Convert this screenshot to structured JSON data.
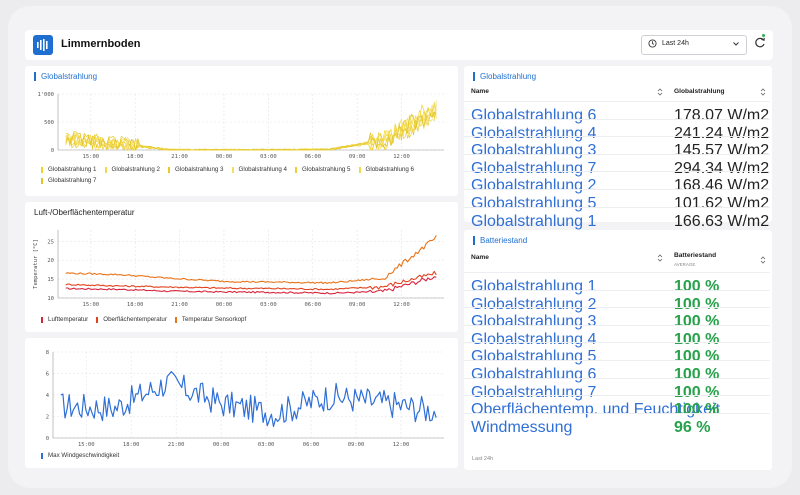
{
  "header": {
    "title": "Limmernboden",
    "range": "Last 24h"
  },
  "x_ticks": [
    "15:00",
    "18:00",
    "21:00",
    "00:00",
    "03:00",
    "06:00",
    "09:00",
    "12:00"
  ],
  "chart1": {
    "title": "Globalstrahlung",
    "yticks": [
      "1'000",
      "500",
      "0"
    ],
    "legend": [
      "Globalstrahlung 1",
      "Globalstrahlung 2",
      "Globalstrahlung 3",
      "Globalstrahlung 4",
      "Globalstrahlung 5",
      "Globalstrahlung 6",
      "Globalstrahlung 7"
    ],
    "colors": [
      "#f2d225",
      "#f0d84a",
      "#e8c92a",
      "#f5df5c",
      "#eccd34",
      "#f3d94e",
      "#e0c528"
    ]
  },
  "chart2": {
    "title": "Luft-/Oberflächentemperatur",
    "ylabel": "Temperatur [°C]",
    "yticks": [
      "25",
      "20",
      "15",
      "10"
    ],
    "legend": [
      "Lufttemperatur",
      "Oberflächentemperatur",
      "Temperatur Sensorkopf"
    ],
    "colors": [
      "#d6243b",
      "#e2431f",
      "#e8741a"
    ]
  },
  "chart3": {
    "yticks": [
      "8",
      "6",
      "4",
      "2",
      "0"
    ],
    "legend": [
      "Max Windgeschwindigkeit"
    ],
    "color": "#2f6fd6"
  },
  "table1": {
    "title": "Globalstrahlung",
    "col_name": "Name",
    "col_value": "Globalstrahlung",
    "rows": [
      {
        "name": "Globalstrahlung 6",
        "value": "178.07 W/m2"
      },
      {
        "name": "Globalstrahlung 4",
        "value": "241.24 W/m2"
      },
      {
        "name": "Globalstrahlung 3",
        "value": "145.57 W/m2"
      },
      {
        "name": "Globalstrahlung 7",
        "value": "294.34 W/m2"
      },
      {
        "name": "Globalstrahlung 2",
        "value": "168.46 W/m2"
      },
      {
        "name": "Globalstrahlung 5",
        "value": "101.62 W/m2"
      },
      {
        "name": "Globalstrahlung 1",
        "value": "166.63 W/m2"
      }
    ]
  },
  "table2": {
    "title": "Batteriestand",
    "col_name": "Name",
    "col_value": "Batteriestand",
    "col_sub": "AVERAGE",
    "footer": "Last 24h",
    "rows": [
      {
        "name": "Globalstrahlung 1",
        "value": "100 %"
      },
      {
        "name": "Globalstrahlung 2",
        "value": "100 %"
      },
      {
        "name": "Globalstrahlung 3",
        "value": "100 %"
      },
      {
        "name": "Globalstrahlung 4",
        "value": "100 %"
      },
      {
        "name": "Globalstrahlung 5",
        "value": "100 %"
      },
      {
        "name": "Globalstrahlung 6",
        "value": "100 %"
      },
      {
        "name": "Globalstrahlung 7",
        "value": "100 %"
      },
      {
        "name": "Oberflächentemp. und Feuchtigkeit",
        "value": "100 %"
      },
      {
        "name": "Windmessung",
        "value": "96 %"
      }
    ]
  },
  "chart_data": [
    {
      "type": "line",
      "title": "Globalstrahlung",
      "ylim": [
        0,
        1000
      ],
      "x": [
        "15:00",
        "18:00",
        "21:00",
        "00:00",
        "03:00",
        "06:00",
        "09:00",
        "12:00"
      ],
      "series": [
        {
          "name": "Globalstrahlung 1",
          "values": [
            190,
            110,
            0,
            0,
            0,
            10,
            170,
            820
          ]
        },
        {
          "name": "Globalstrahlung 2",
          "values": [
            210,
            120,
            0,
            0,
            0,
            12,
            180,
            700
          ]
        },
        {
          "name": "Globalstrahlung 3",
          "values": [
            170,
            100,
            0,
            0,
            0,
            8,
            160,
            640
          ]
        },
        {
          "name": "Globalstrahlung 4",
          "values": [
            230,
            130,
            0,
            0,
            0,
            14,
            190,
            760
          ]
        },
        {
          "name": "Globalstrahlung 5",
          "values": [
            160,
            90,
            0,
            0,
            0,
            9,
            150,
            600
          ]
        },
        {
          "name": "Globalstrahlung 6",
          "values": [
            200,
            115,
            0,
            0,
            0,
            11,
            175,
            720
          ]
        },
        {
          "name": "Globalstrahlung 7",
          "values": [
            240,
            125,
            0,
            0,
            0,
            13,
            185,
            680
          ]
        }
      ]
    },
    {
      "type": "line",
      "title": "Luft-/Oberflächentemperatur",
      "ylabel": "Temperatur [°C]",
      "ylim": [
        10,
        28
      ],
      "x": [
        "15:00",
        "18:00",
        "21:00",
        "00:00",
        "03:00",
        "06:00",
        "09:00",
        "12:00"
      ],
      "series": [
        {
          "name": "Lufttemperatur",
          "values": [
            12.5,
            12.3,
            11.8,
            11.6,
            11.5,
            11.3,
            11.7,
            15.8
          ]
        },
        {
          "name": "Oberflächentemperatur",
          "values": [
            13.6,
            13.2,
            12.9,
            12.6,
            12.5,
            12.3,
            13.0,
            16.6
          ]
        },
        {
          "name": "Temperatur Sensorkopf",
          "values": [
            16.6,
            16.2,
            15.2,
            14.4,
            14.2,
            14.0,
            15.2,
            26.0
          ]
        }
      ]
    },
    {
      "type": "line",
      "ylim": [
        0,
        8
      ],
      "x": [
        "15:00",
        "18:00",
        "21:00",
        "00:00",
        "03:00",
        "06:00",
        "09:00",
        "12:00"
      ],
      "series": [
        {
          "name": "Max Windgeschwindigkeit",
          "values": [
            3.0,
            2.8,
            5.2,
            3.2,
            2.3,
            3.9,
            3.3,
            2.5
          ]
        }
      ]
    }
  ]
}
